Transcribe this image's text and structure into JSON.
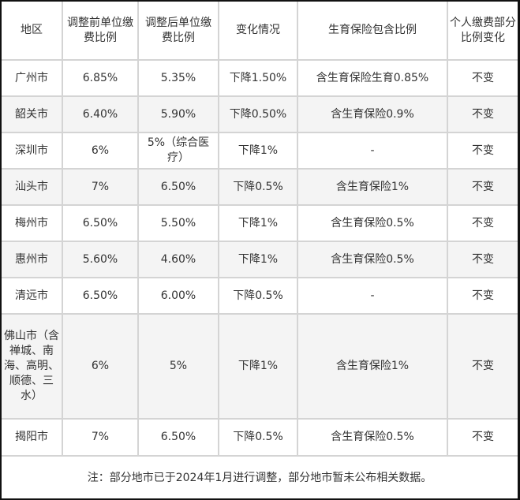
{
  "table": {
    "headers": [
      "地区",
      "调整前单位缴费比例",
      "调整后单位缴费比例",
      "变化情况",
      "生育保险包含比例",
      "个人缴费部分比例变化"
    ],
    "rows": [
      [
        "广州市",
        "6.85%",
        "5.35%",
        "下降1.50%",
        "含生育保险生育0.85%",
        "不变"
      ],
      [
        "韶关市",
        "6.40%",
        "5.90%",
        "下降0.50%",
        "含生育保险0.9%",
        "不变"
      ],
      [
        "深圳市",
        "6%",
        "5%（综合医疗）",
        "下降1%",
        "-",
        "不变"
      ],
      [
        "汕头市",
        "7%",
        "6.50%",
        "下降0.5%",
        "含生育保险1%",
        "不变"
      ],
      [
        "梅州市",
        "6.50%",
        "5.50%",
        "下降1%",
        "含生育保险0.5%",
        "不变"
      ],
      [
        "惠州市",
        "5.60%",
        "4.60%",
        "下降1%",
        "含生育保险0.5%",
        "不变"
      ],
      [
        "清远市",
        "6.50%",
        "6.00%",
        "下降0.5%",
        "-",
        "不变"
      ],
      [
        "佛山市（含禅城、南海、高明、顺德、三水）",
        "6%",
        "5%",
        "下降1%",
        "含生育保险1%",
        "不变"
      ],
      [
        "揭阳市",
        "7%",
        "6.50%",
        "下降0.5%",
        "含生育保险0.5%",
        "不变"
      ]
    ],
    "note": "注：部分地市已于2024年1月进行调整，部分地市暂未公布相关数据。"
  }
}
